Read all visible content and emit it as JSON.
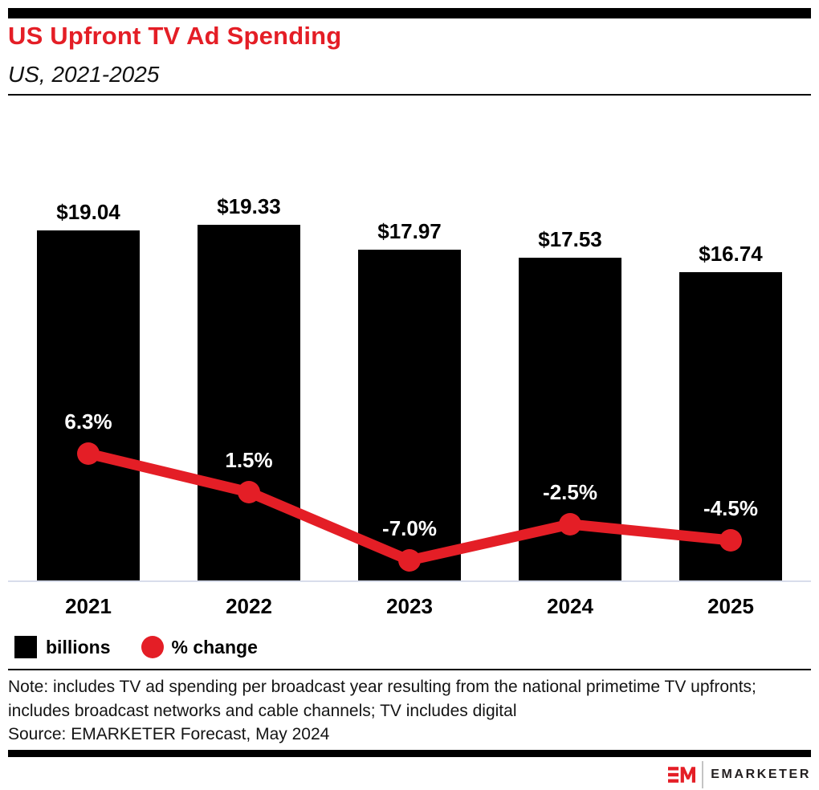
{
  "header": {
    "title": "US Upfront TV Ad Spending",
    "subtitle": "US, 2021-2025"
  },
  "chart_data": {
    "type": "bar",
    "subtype": "bar-line-combo",
    "categories": [
      "2021",
      "2022",
      "2023",
      "2024",
      "2025"
    ],
    "series": [
      {
        "name": "billions",
        "type": "bar",
        "unit": "US$ billions",
        "values": [
          19.04,
          19.33,
          17.97,
          17.53,
          16.74
        ],
        "labels": [
          "$19.04",
          "$19.33",
          "$17.97",
          "$17.53",
          "$16.74"
        ],
        "color": "#000000"
      },
      {
        "name": "% change",
        "type": "line",
        "unit": "percent",
        "values": [
          6.3,
          1.5,
          -7.0,
          -2.5,
          -4.5
        ],
        "labels": [
          "6.3%",
          "1.5%",
          "-7.0%",
          "-2.5%",
          "-4.5%"
        ],
        "color": "#E41E26"
      }
    ],
    "legend": [
      {
        "label": "billions",
        "swatch": "square",
        "color": "#000000"
      },
      {
        "label": "% change",
        "swatch": "circle",
        "color": "#E41E26"
      }
    ],
    "legend_position": "bottom-left",
    "grid": false,
    "title": "US Upfront TV Ad Spending",
    "xlabel": "",
    "ylabel": ""
  },
  "footer": {
    "note": "Note: includes TV ad spending per broadcast year resulting from the national primetime TV upfronts; includes broadcast networks and cable channels; TV includes digital",
    "source": "Source: EMARKETER Forecast, May 2024"
  },
  "logo": {
    "mark": "EM",
    "wordmark": "EMARKETER"
  },
  "colors": {
    "accent_red": "#E41E26",
    "bar_black": "#000000",
    "axis_line": "#D8DDEB",
    "text": "#141414"
  }
}
